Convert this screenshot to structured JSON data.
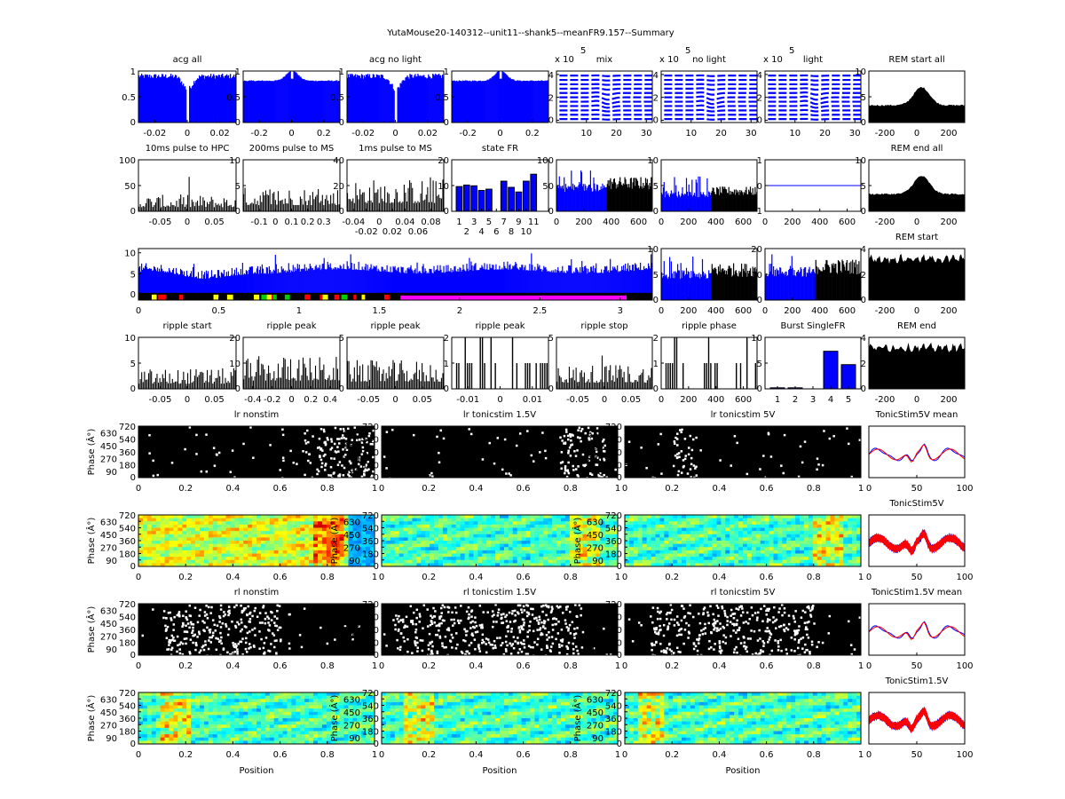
{
  "figure_title": "YutaMouse20-140312--unit11--shank5--meanFR9.157--Summary",
  "xlabel_position": "Position",
  "ylabel_phase": "Phase (Â°)",
  "exponent_label": "x 10",
  "exponent": "5",
  "colors": {
    "blue": "#0000ff",
    "red": "#ff0000",
    "black": "#000000",
    "yellow": "#ffff00",
    "magenta": "#ff00ff",
    "green": "#00cc00"
  },
  "panels": [
    {
      "title": "acg all",
      "kind": "acg_dip",
      "xlim": [
        -0.03,
        0.03
      ],
      "ylim": [
        0,
        1
      ],
      "xticks": [
        -0.02,
        0,
        0.02
      ],
      "yticks": [
        0,
        0.5,
        1
      ]
    },
    {
      "title": "",
      "kind": "acg_peak",
      "xlim": [
        -0.3,
        0.3
      ],
      "ylim": [
        0,
        1
      ],
      "xticks": [
        -0.2,
        0,
        0.2
      ],
      "yticks": [
        0,
        0.5,
        1
      ]
    },
    {
      "title": "acg no light",
      "kind": "acg_dip",
      "xlim": [
        -0.03,
        0.03
      ],
      "ylim": [
        0,
        1
      ],
      "xticks": [
        -0.02,
        0,
        0.02
      ],
      "yticks": [
        0,
        0.5,
        1
      ]
    },
    {
      "title": "",
      "kind": "acg_peak",
      "xlim": [
        -0.3,
        0.3
      ],
      "ylim": [
        0,
        1
      ],
      "xticks": [
        -0.2,
        0,
        0.2
      ],
      "yticks": [
        0,
        0.5,
        1
      ]
    },
    {
      "title": "mix",
      "kind": "wave",
      "exp": true,
      "xlim": [
        0,
        32
      ],
      "ylim": [
        -0.2,
        4.3
      ],
      "xticks": [
        10,
        20,
        30
      ],
      "yticks": [
        0,
        2,
        4
      ]
    },
    {
      "title": "no light",
      "kind": "wave",
      "exp": true,
      "xlim": [
        0,
        32
      ],
      "ylim": [
        -0.2,
        4.3
      ],
      "xticks": [
        10,
        20,
        30
      ],
      "yticks": [
        0,
        2,
        4
      ]
    },
    {
      "title": "light",
      "kind": "wave",
      "exp": true,
      "xlim": [
        0,
        32
      ],
      "ylim": [
        -0.2,
        4.3
      ],
      "xticks": [
        10,
        20,
        30
      ],
      "yticks": [
        0,
        2,
        4
      ]
    },
    {
      "title": "REM start all",
      "kind": "area_bump",
      "xlim": [
        -300,
        300
      ],
      "ylim": [
        0,
        10
      ],
      "xticks": [
        -200,
        0,
        200
      ],
      "yticks": [
        0,
        5,
        10
      ]
    },
    {
      "title": "10ms pulse to HPC",
      "kind": "hist",
      "level": 0.2,
      "xlim": [
        -0.09,
        0.09
      ],
      "ylim": [
        0,
        100
      ],
      "xticks": [
        -0.05,
        0,
        0.05
      ],
      "yticks": [
        0,
        50,
        100
      ]
    },
    {
      "title": "200ms pulse to MS",
      "kind": "hist",
      "level": 0.3,
      "xlim": [
        -0.2,
        0.4
      ],
      "ylim": [
        0,
        10
      ],
      "xticks": [
        -0.1,
        0,
        0.1,
        0.2,
        0.3
      ],
      "yticks": [
        0,
        5,
        10
      ]
    },
    {
      "title": "1ms pulse to MS",
      "kind": "hist",
      "level": 0.4,
      "xlim": [
        -0.05,
        0.1
      ],
      "ylim": [
        0,
        40
      ],
      "xticks": [
        -0.04,
        -0.02,
        0,
        0.02,
        0.04,
        0.06,
        0.08
      ],
      "yticks": [
        0,
        20,
        40
      ]
    },
    {
      "title": "state FR",
      "kind": "bars",
      "values": [
        9.6,
        10.2,
        9.9,
        8.1,
        8.6,
        0,
        11.7,
        9.3,
        7.5,
        11.7,
        14.4
      ],
      "categories": [
        1,
        2,
        3,
        4,
        5,
        6,
        7,
        8,
        9,
        10,
        11
      ],
      "xlim": [
        0,
        13
      ],
      "ylim": [
        0,
        20
      ],
      "xticks": [
        1,
        2,
        3,
        4,
        5,
        6,
        7,
        8,
        9,
        10,
        11
      ],
      "yticks": [
        0,
        10,
        20
      ]
    },
    {
      "title": "",
      "kind": "split",
      "level": 0.42,
      "xlim": [
        0,
        700
      ],
      "ylim": [
        0,
        100
      ],
      "xticks": [
        0,
        200,
        400,
        600
      ],
      "yticks": [
        0,
        50,
        100
      ]
    },
    {
      "title": "",
      "kind": "split",
      "level": 0.3,
      "xlim": [
        0,
        700
      ],
      "ylim": [
        0,
        10
      ],
      "xticks": [
        0,
        200,
        400,
        600
      ],
      "yticks": [
        0,
        5,
        10
      ]
    },
    {
      "title": "",
      "kind": "flat",
      "xlim": [
        0,
        700
      ],
      "ylim": [
        -1,
        1
      ],
      "xticks": [
        0,
        200,
        400,
        600
      ],
      "yticks": [
        -1,
        0,
        1
      ]
    },
    {
      "title": "REM end all",
      "kind": "area_bump",
      "xlim": [
        -300,
        300
      ],
      "ylim": [
        0,
        10
      ],
      "xticks": [
        -200,
        0,
        200
      ],
      "yticks": [
        0,
        5,
        10
      ]
    },
    {
      "title": "",
      "kind": "big",
      "xlim": [
        0,
        3.2
      ],
      "ylim": [
        -1.3,
        11
      ],
      "xticks": [
        0,
        0.5,
        1,
        1.5,
        2,
        2.5,
        3
      ],
      "yticks": [
        0,
        5,
        10
      ]
    },
    {
      "title": "",
      "kind": "split",
      "level": 0.45,
      "xlim": [
        0,
        700
      ],
      "ylim": [
        0,
        10
      ],
      "xticks": [
        0,
        200,
        400,
        600
      ],
      "yticks": [
        0,
        5,
        10
      ]
    },
    {
      "title": "",
      "kind": "split",
      "level": 0.5,
      "xlim": [
        0,
        700
      ],
      "ylim": [
        0,
        20
      ],
      "xticks": [
        0,
        200,
        400,
        600
      ],
      "yticks": [
        0,
        10,
        20
      ]
    },
    {
      "title": "REM start",
      "kind": "area_flat",
      "xlim": [
        -300,
        300
      ],
      "ylim": [
        0,
        4
      ],
      "xticks": [
        -200,
        0,
        200
      ],
      "yticks": [
        0,
        2,
        4
      ]
    },
    {
      "title": "ripple start",
      "kind": "hist",
      "level": 0.25,
      "xlim": [
        -0.09,
        0.09
      ],
      "ylim": [
        0,
        10
      ],
      "xticks": [
        -0.05,
        0,
        0.05
      ],
      "yticks": [
        0,
        5,
        10
      ]
    },
    {
      "title": "ripple peak",
      "kind": "hist",
      "level": 0.4,
      "xlim": [
        -0.5,
        0.5
      ],
      "ylim": [
        0,
        20
      ],
      "xticks": [
        -0.4,
        -0.2,
        0,
        0.2,
        0.4
      ],
      "yticks": [
        0,
        10,
        20
      ]
    },
    {
      "title": "ripple peak",
      "kind": "hist",
      "level": 0.35,
      "xlim": [
        -0.09,
        0.09
      ],
      "ylim": [
        0,
        5
      ],
      "xticks": [
        -0.05,
        0,
        0.05
      ],
      "yticks": [
        0,
        5
      ]
    },
    {
      "title": "ripple peak",
      "kind": "sparse",
      "xlim": [
        -0.015,
        0.015
      ],
      "ylim": [
        0,
        2
      ],
      "xticks": [
        -0.01,
        0,
        0.01
      ],
      "yticks": [
        0,
        1,
        2
      ]
    },
    {
      "title": "ripple stop",
      "kind": "hist",
      "level": 0.3,
      "xlim": [
        -0.09,
        0.09
      ],
      "ylim": [
        0,
        5
      ],
      "xticks": [
        -0.05,
        0,
        0.05
      ],
      "yticks": [
        0,
        5
      ]
    },
    {
      "title": "ripple phase",
      "kind": "sparse",
      "xlim": [
        0,
        700
      ],
      "ylim": [
        0,
        2
      ],
      "xticks": [
        0,
        200,
        400,
        600
      ],
      "yticks": [
        0,
        1,
        2
      ]
    },
    {
      "title": "Burst SingleFR",
      "kind": "bars",
      "values": [
        0.2,
        0.2,
        0,
        7.3,
        4.7
      ],
      "categories": [
        1,
        2,
        3,
        4,
        5
      ],
      "xlim": [
        0.3,
        5.7
      ],
      "ylim": [
        0,
        10
      ],
      "xticks": [
        1,
        2,
        3,
        4,
        5
      ],
      "yticks": [
        0,
        5,
        10
      ]
    },
    {
      "title": "REM end",
      "kind": "area_flat",
      "xlim": [
        -300,
        300
      ],
      "ylim": [
        0,
        4
      ],
      "xticks": [
        -200,
        0,
        200
      ],
      "yticks": [
        0,
        2,
        4
      ]
    },
    {
      "title": "lr nonstim",
      "kind": "raster",
      "white": [
        0.7,
        1
      ],
      "xlim": [
        0,
        1
      ],
      "ylim": [
        0,
        720
      ],
      "xticks": [
        0,
        0.2,
        0.4,
        0.6,
        0.8,
        1
      ],
      "yticks": [
        0,
        90,
        180,
        270,
        360,
        450,
        540,
        630,
        720
      ],
      "ylabel": true
    },
    {
      "title": "lr tonicstim 1.5V",
      "kind": "raster",
      "white": [
        0.75,
        0.95
      ],
      "xlim": [
        0,
        1
      ],
      "ylim": [
        0,
        720
      ],
      "xticks": [
        0,
        0.2,
        0.4,
        0.6,
        0.8,
        1
      ],
      "yticks": [
        0,
        90,
        180,
        270,
        360,
        450,
        540,
        630,
        720
      ]
    },
    {
      "title": "lr tonicstim 5V",
      "kind": "raster",
      "white": [
        0.2,
        0.3
      ],
      "xlim": [
        0,
        1
      ],
      "ylim": [
        0,
        720
      ],
      "xticks": [
        0,
        0.2,
        0.4,
        0.6,
        0.8,
        1
      ],
      "yticks": [
        0,
        90,
        180,
        270,
        360,
        450,
        540,
        630,
        720
      ]
    },
    {
      "title": "TonicStim5V mean",
      "kind": "mean",
      "xlim": [
        0,
        100
      ],
      "ylim": [
        0,
        1
      ],
      "xticks": [
        0,
        50,
        100
      ],
      "yticks": []
    },
    {
      "title": "",
      "kind": "heat",
      "hot": 0.8,
      "xlim": [
        0,
        1
      ],
      "ylim": [
        0,
        720
      ],
      "xticks": [
        0,
        0.2,
        0.4,
        0.6,
        0.8,
        1
      ],
      "yticks": [
        0,
        90,
        180,
        270,
        360,
        450,
        540,
        630,
        720
      ],
      "ylabel": true
    },
    {
      "title": "",
      "kind": "heat",
      "hot": 0.85,
      "cool": true,
      "xlim": [
        0,
        1
      ],
      "ylim": [
        0,
        720
      ],
      "xticks": [
        0,
        0.2,
        0.4,
        0.6,
        0.8,
        1
      ],
      "yticks": [
        0,
        90,
        180,
        270,
        360,
        450,
        540,
        630,
        720
      ],
      "ylabel": true
    },
    {
      "title": "",
      "kind": "heat",
      "hot": 0.85,
      "cool": true,
      "xlim": [
        0,
        1
      ],
      "ylim": [
        0,
        720
      ],
      "xticks": [
        0,
        0.2,
        0.4,
        0.6,
        0.8,
        1
      ],
      "yticks": [
        0,
        90,
        180,
        270,
        360,
        450,
        540,
        630,
        720
      ],
      "ylabel": true
    },
    {
      "title": "TonicStim5V",
      "kind": "traces",
      "xlim": [
        0,
        100
      ],
      "ylim": [
        0,
        1
      ],
      "xticks": [
        0,
        50,
        100
      ],
      "yticks": []
    },
    {
      "title": "rl nonstim",
      "kind": "raster",
      "white": [
        0.1,
        0.6
      ],
      "xlim": [
        0,
        1
      ],
      "ylim": [
        0,
        720
      ],
      "xticks": [
        0,
        0.2,
        0.4,
        0.6,
        0.8,
        1
      ],
      "yticks": [
        0,
        90,
        180,
        270,
        360,
        450,
        540,
        630,
        720
      ],
      "ylabel": true
    },
    {
      "title": "rl tonicstim 1.5V",
      "kind": "raster",
      "white": [
        0.05,
        0.85
      ],
      "xlim": [
        0,
        1
      ],
      "ylim": [
        0,
        720
      ],
      "xticks": [
        0,
        0.2,
        0.4,
        0.6,
        0.8,
        1
      ],
      "yticks": [
        0,
        90,
        180,
        270,
        360,
        450,
        540,
        630,
        720
      ]
    },
    {
      "title": "rl tonicstim 5V",
      "kind": "raster",
      "white": [
        0.1,
        0.8
      ],
      "xlim": [
        0,
        1
      ],
      "ylim": [
        0,
        720
      ],
      "xticks": [
        0,
        0.2,
        0.4,
        0.6,
        0.8,
        1
      ],
      "yticks": [
        0,
        90,
        180,
        270,
        360,
        450,
        540,
        630,
        720
      ]
    },
    {
      "title": "TonicStim1.5V mean",
      "kind": "mean",
      "xlim": [
        0,
        100
      ],
      "ylim": [
        0,
        1
      ],
      "xticks": [
        0,
        50,
        100
      ],
      "yticks": []
    },
    {
      "title": "",
      "kind": "heat",
      "hot": 0.15,
      "cool": true,
      "xlim": [
        0,
        1
      ],
      "ylim": [
        0,
        720
      ],
      "xticks": [
        0,
        0.2,
        0.4,
        0.6,
        0.8,
        1
      ],
      "yticks": [
        0,
        90,
        180,
        270,
        360,
        450,
        540,
        630,
        720
      ],
      "ylabel": true,
      "xlabel": true
    },
    {
      "title": "",
      "kind": "heat",
      "hot": 0.15,
      "cool": true,
      "xlim": [
        0,
        1
      ],
      "ylim": [
        0,
        720
      ],
      "xticks": [
        0,
        0.2,
        0.4,
        0.6,
        0.8,
        1
      ],
      "yticks": [
        0,
        90,
        180,
        270,
        360,
        450,
        540,
        630,
        720
      ],
      "ylabel": true,
      "xlabel": true
    },
    {
      "title": "",
      "kind": "heat",
      "hot": 0.1,
      "cool": true,
      "xlim": [
        0,
        1
      ],
      "ylim": [
        0,
        720
      ],
      "xticks": [
        0,
        0.2,
        0.4,
        0.6,
        0.8,
        1
      ],
      "yticks": [
        0,
        90,
        180,
        270,
        360,
        450,
        540,
        630,
        720
      ],
      "ylabel": true,
      "xlabel": true
    },
    {
      "title": "TonicStim1.5V",
      "kind": "traces",
      "xlim": [
        0,
        100
      ],
      "ylim": [
        0,
        1
      ],
      "xticks": [
        0,
        50,
        100
      ],
      "yticks": []
    }
  ]
}
